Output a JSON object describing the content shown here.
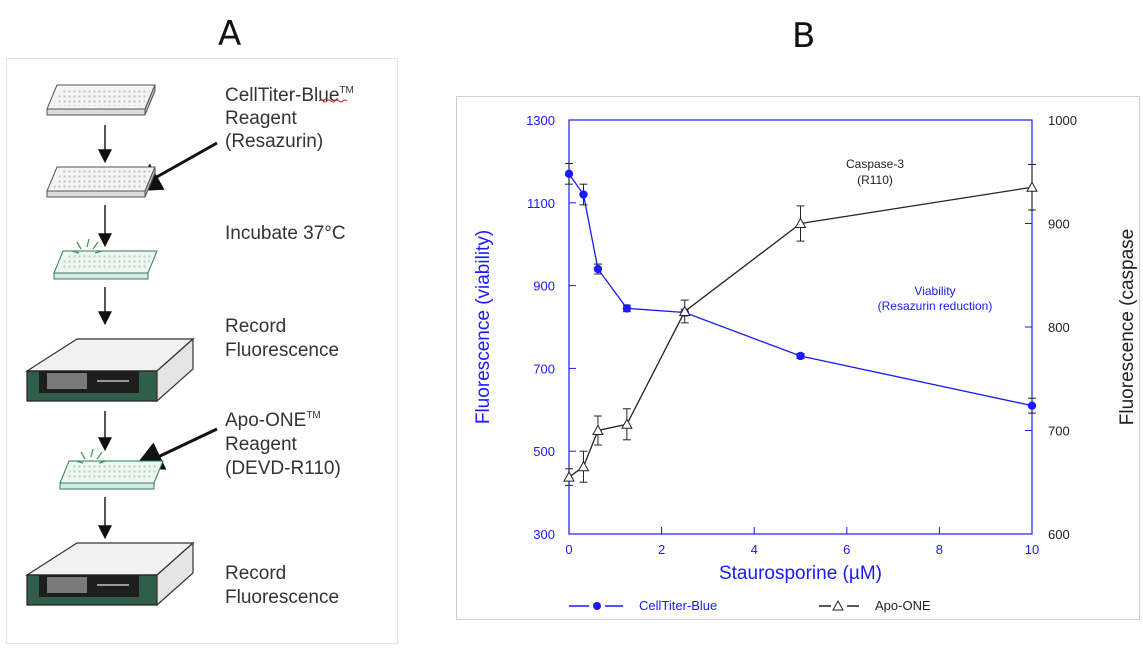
{
  "panels": {
    "a_letter": "A",
    "b_letter": "B"
  },
  "workflow": {
    "steps": [
      {
        "kind": "reagent",
        "name": "CellTiter-Blue",
        "tm": "TM",
        "line2": "Reagent",
        "line3": "(Resazurin)"
      },
      {
        "kind": "text",
        "lines": [
          "Incubate 37°C"
        ]
      },
      {
        "kind": "text",
        "lines": [
          "Record",
          "Fluorescence"
        ]
      },
      {
        "kind": "reagent",
        "name": "Apo-ONE",
        "tm": "TM",
        "line2": "Reagent",
        "line3": "(DEVD-R110)"
      },
      {
        "kind": "text",
        "lines": [
          "Record",
          "Fluorescence"
        ]
      }
    ]
  },
  "chart_data": {
    "type": "line",
    "xlabel": "Staurosporine (µM)",
    "ylabel_left": "Fluorescence (viability)",
    "ylabel_right": "Fluorescence (caspase",
    "x_ticks": [
      0,
      2,
      4,
      6,
      8,
      10
    ],
    "xlim": [
      0,
      10
    ],
    "y_left_ticks": [
      300,
      500,
      700,
      900,
      1100,
      1300
    ],
    "y_left_lim": [
      300,
      1300
    ],
    "y_right_ticks": [
      600,
      700,
      800,
      900,
      1000
    ],
    "y_right_lim": [
      600,
      1000
    ],
    "grid": false,
    "legend_position": "bottom",
    "colors": {
      "viability": "#1a1aff",
      "caspase": "#222222"
    },
    "series": [
      {
        "name": "CellTiter-Blue",
        "axis": "left",
        "marker": "filled-circle",
        "x": [
          0,
          0.3125,
          0.625,
          1.25,
          2.5,
          5,
          10
        ],
        "y": [
          1170,
          1120,
          940,
          845,
          835,
          730,
          610
        ],
        "err": [
          25,
          25,
          12,
          8,
          8,
          6,
          18
        ],
        "annotation": [
          "Viability",
          "(Resazurin reduction)"
        ]
      },
      {
        "name": "Apo-ONE",
        "axis": "right",
        "marker": "open-triangle",
        "x": [
          0,
          0.3125,
          0.625,
          1.25,
          2.5,
          5,
          10
        ],
        "y": [
          655,
          665,
          700,
          706,
          815,
          900,
          935
        ],
        "err": [
          8,
          15,
          14,
          15,
          11,
          17,
          22
        ],
        "annotation": [
          "Caspase-3",
          "(R110)"
        ]
      }
    ]
  }
}
